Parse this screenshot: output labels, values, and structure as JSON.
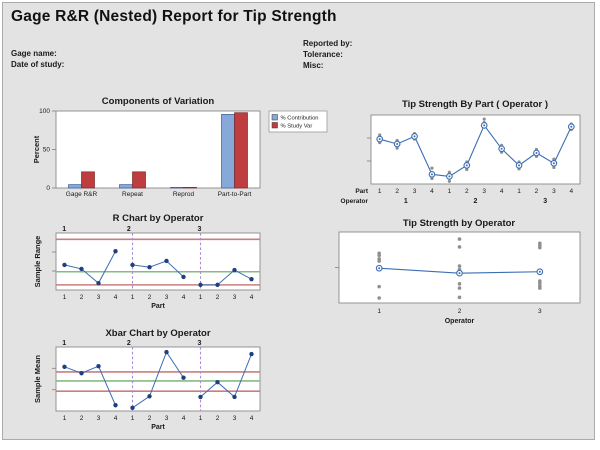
{
  "title": "Gage R&R (Nested) Report for Tip Strength",
  "header": {
    "gage_name_label": "Gage name:",
    "date_label": "Date of study:",
    "reported_label": "Reported by:",
    "tolerance_label": "Tolerance:",
    "misc_label": "Misc:"
  },
  "colors": {
    "background": "#e3e3e3",
    "panel_fill": "#ffffff",
    "plot_border": "#8a8a8a",
    "title_text": "#1a1a1a",
    "tick_text": "#1a1a1a",
    "contribution_blue": "#87a9da",
    "contribution_blue_stroke": "#3a5c9e",
    "study_red": "#be3e40",
    "study_red_stroke": "#7e2a2a",
    "line_blue": "#3c6eb4",
    "point_navy": "#1f3f7f",
    "obs_gray": "#8f8f8f",
    "control_red": "#c97f7f",
    "center_green": "#85bb85",
    "separator_purple": "#a98bd3",
    "legend_border": "#999999"
  },
  "chart_data": [
    {
      "id": "cov",
      "type": "bar",
      "title": "Components of Variation",
      "ylabel": "Percent",
      "xlabel": "",
      "categories": [
        "Gage R&R",
        "Repeat",
        "Reprod",
        "Part-to-Part"
      ],
      "series": [
        {
          "name": "% Contribution",
          "values": [
            4.4,
            4.4,
            0.3,
            95.6
          ]
        },
        {
          "name": "% Study Var",
          "values": [
            21.0,
            21.0,
            0.5,
            97.8
          ]
        }
      ],
      "yticks": [
        0,
        50,
        100
      ],
      "ylim": [
        0,
        100
      ],
      "legend_position": "right",
      "grid": false
    },
    {
      "id": "by_part",
      "type": "line",
      "title": "Tip Strength By Part ( Operator )",
      "row_labels": {
        "part": "Part",
        "operator": "Operator"
      },
      "part_labels": [
        "1",
        "2",
        "3",
        "4",
        "1",
        "2",
        "3",
        "4",
        "1",
        "2",
        "3",
        "4"
      ],
      "operator_labels": [
        "1",
        "2",
        "3"
      ],
      "means": [
        65,
        58,
        69,
        14,
        11,
        27,
        85,
        51,
        27,
        45,
        30,
        83
      ],
      "observations": [
        [
          71,
          67,
          60
        ],
        [
          63,
          52
        ],
        [
          73,
          65
        ],
        [
          23,
          8
        ],
        [
          17,
          4
        ],
        [
          32,
          21
        ],
        [
          94,
          89
        ],
        [
          56,
          46
        ],
        [
          32,
          22
        ],
        [
          50,
          40
        ],
        [
          36,
          24
        ],
        [
          87,
          79
        ]
      ],
      "ylim": [
        0,
        100
      ],
      "y_axis_labeled": false
    },
    {
      "id": "r_chart",
      "type": "control",
      "title": "R Chart by Operator",
      "ylabel": "Sample Range",
      "xlabel": "Part",
      "part_labels": [
        "1",
        "2",
        "3",
        "4",
        "1",
        "2",
        "3",
        "4",
        "1",
        "2",
        "3",
        "4"
      ],
      "operator_labels": [
        "1",
        "2",
        "3"
      ],
      "values": [
        44,
        37,
        12,
        68,
        44,
        40,
        51,
        23,
        9,
        9,
        35,
        19
      ],
      "ucl": 89,
      "center": 32,
      "lcl": 9,
      "ylim": [
        0,
        100
      ],
      "y_axis_labeled": false
    },
    {
      "id": "by_operator",
      "type": "scatter",
      "title": "Tip Strength by Operator",
      "xlabel": "Operator",
      "categories": [
        "1",
        "2",
        "3"
      ],
      "means": [
        49,
        42,
        44
      ],
      "observations": [
        [
          70,
          67,
          62,
          59,
          49,
          23,
          7
        ],
        [
          90,
          79,
          52,
          47,
          44,
          27,
          21,
          8
        ],
        [
          84,
          81,
          78,
          31,
          28,
          24,
          21
        ]
      ],
      "ylim": [
        0,
        100
      ],
      "y_axis_labeled": false
    },
    {
      "id": "xbar_chart",
      "type": "control",
      "title": "Xbar Chart by Operator",
      "ylabel": "Sample Mean",
      "xlabel": "Part",
      "part_labels": [
        "1",
        "2",
        "3",
        "4",
        "1",
        "2",
        "3",
        "4",
        "1",
        "2",
        "3",
        "4"
      ],
      "operator_labels": [
        "1",
        "2",
        "3"
      ],
      "values": [
        69,
        59,
        70,
        9,
        5,
        23,
        92,
        52,
        22,
        45,
        22,
        89
      ],
      "ucl": 61,
      "center": 47,
      "lcl": 31,
      "ylim": [
        0,
        100
      ],
      "y_axis_labeled": false
    }
  ]
}
